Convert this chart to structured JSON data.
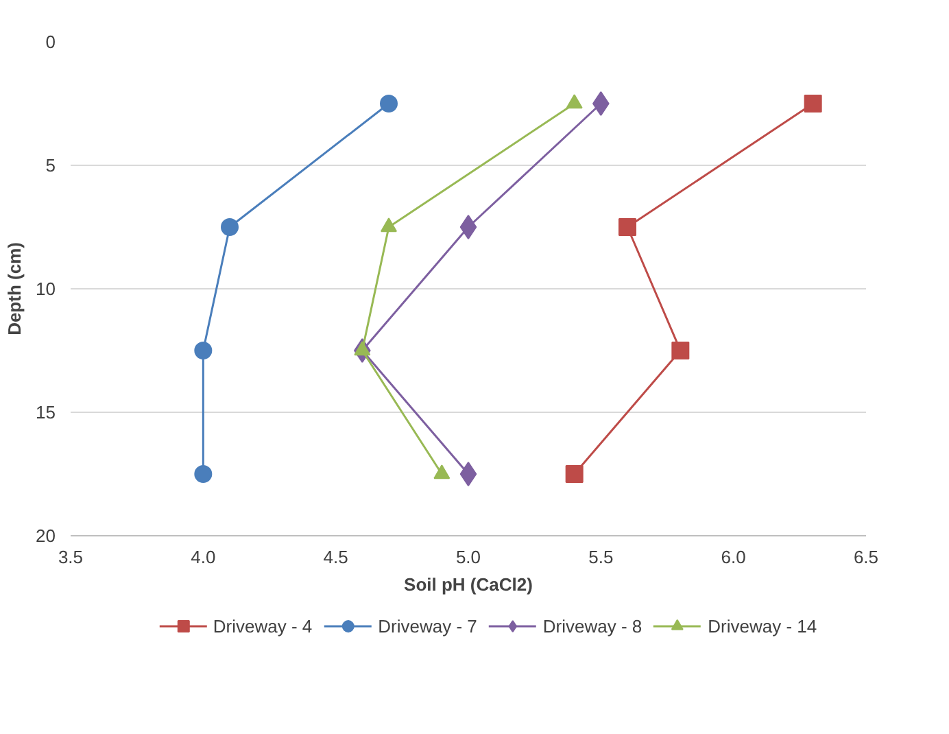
{
  "chart_data": {
    "type": "line",
    "xlabel": "Soil pH (CaCl2)",
    "ylabel": "Depth (cm)",
    "xlim": [
      3.5,
      6.5
    ],
    "xticks": [
      3.5,
      {
        "value": 4,
        "label": "4.0"
      },
      4.5,
      {
        "value": 5,
        "label": "5.0"
      },
      5.5,
      {
        "value": 6,
        "label": "6.0"
      },
      6.5
    ],
    "ylim": [
      20,
      0
    ],
    "yticks": [
      0,
      5,
      10,
      15,
      20
    ],
    "grid": "y",
    "legend": "bottom",
    "series": [
      {
        "name": "Driveway - 4",
        "color": "#be4b48",
        "marker": "square",
        "x": [
          6.3,
          5.6,
          5.8,
          5.4
        ],
        "values": [
          2.5,
          7.5,
          12.5,
          17.5
        ]
      },
      {
        "name": "Driveway - 7",
        "color": "#4a7ebb",
        "marker": "circle",
        "x": [
          4.7,
          4.1,
          4.0,
          4.0
        ],
        "values": [
          2.5,
          7.5,
          12.5,
          17.5
        ]
      },
      {
        "name": "Driveway - 8",
        "color": "#7d5fa0",
        "marker": "diamond",
        "x": [
          5.5,
          5.0,
          4.6,
          5.0
        ],
        "values": [
          2.5,
          7.5,
          12.5,
          17.5
        ]
      },
      {
        "name": "Driveway - 14",
        "color": "#98b954",
        "marker": "triangle",
        "x": [
          5.4,
          4.7,
          4.6,
          4.9
        ],
        "values": [
          2.5,
          7.5,
          12.5,
          17.5
        ]
      }
    ]
  }
}
